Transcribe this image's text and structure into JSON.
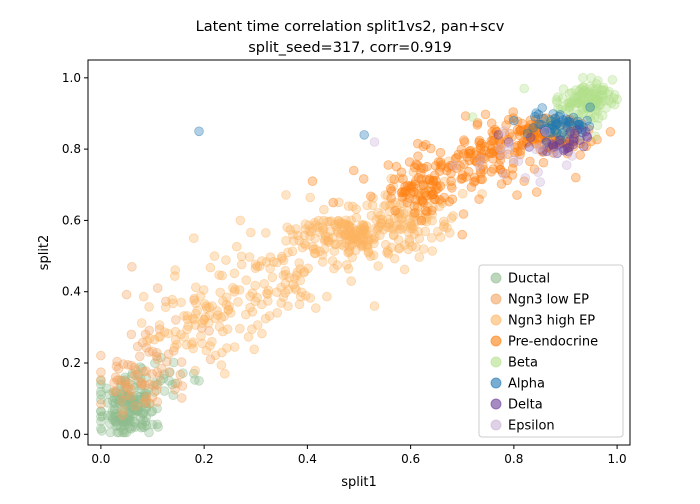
{
  "chart_data": {
    "type": "scatter",
    "title_line1": "Latent time correlation split1vs2, pan+scv",
    "title_line2": "split_seed=317, corr=0.919",
    "xlabel": "split1",
    "ylabel": "split2",
    "xlim": [
      -0.025,
      1.025
    ],
    "ylim": [
      -0.03,
      1.05
    ],
    "xticks": [
      0.0,
      0.2,
      0.4,
      0.6,
      0.8,
      1.0
    ],
    "xtick_labels": [
      "0.0",
      "0.2",
      "0.4",
      "0.6",
      "0.8",
      "1.0"
    ],
    "yticks": [
      0.0,
      0.2,
      0.4,
      0.6,
      0.8,
      1.0
    ],
    "ytick_labels": [
      "0.0",
      "0.2",
      "0.4",
      "0.6",
      "0.8",
      "1.0"
    ],
    "grid": false,
    "legend_position": "lower right",
    "point_alpha": 0.35,
    "series": [
      {
        "name": "Ductal",
        "color": "#8fbc8f",
        "clusters": [
          {
            "cx": 0.05,
            "cy": 0.07,
            "sx": 0.025,
            "sy": 0.04,
            "n": 170
          },
          {
            "cx": 0.13,
            "cy": 0.16,
            "sx": 0.04,
            "sy": 0.025,
            "n": 22
          }
        ],
        "points": [
          [
            0.18,
            0.17
          ],
          [
            0.19,
            0.15
          ],
          [
            0.0,
            0.15
          ],
          [
            0.0,
            0.12
          ]
        ]
      },
      {
        "name": "Ngn3 low EP",
        "color": "#f4a460",
        "clusters": [
          {
            "cx": 0.07,
            "cy": 0.15,
            "sx": 0.04,
            "sy": 0.05,
            "n": 70
          },
          {
            "cx": 0.14,
            "cy": 0.28,
            "sx": 0.05,
            "sy": 0.05,
            "n": 12
          }
        ],
        "points": [
          [
            0.06,
            0.47
          ],
          [
            0.11,
            0.41
          ]
        ]
      },
      {
        "name": "Ngn3 high EP",
        "color": "#fdb462",
        "clusters": [
          {
            "cx": 0.2,
            "cy": 0.32,
            "sx": 0.06,
            "sy": 0.06,
            "n": 95
          },
          {
            "cx": 0.33,
            "cy": 0.43,
            "sx": 0.06,
            "sy": 0.06,
            "n": 75
          },
          {
            "cx": 0.5,
            "cy": 0.56,
            "sx": 0.06,
            "sy": 0.035,
            "n": 220
          },
          {
            "cx": 0.6,
            "cy": 0.63,
            "sx": 0.05,
            "sy": 0.05,
            "n": 70
          }
        ],
        "points": [
          [
            0.18,
            0.55
          ],
          [
            0.22,
            0.5
          ],
          [
            0.27,
            0.6
          ],
          [
            0.24,
            0.17
          ],
          [
            0.53,
            0.36
          ]
        ]
      },
      {
        "name": "Pre-endocrine",
        "color": "#ff7f0e",
        "clusters": [
          {
            "cx": 0.63,
            "cy": 0.7,
            "sx": 0.04,
            "sy": 0.045,
            "n": 95
          },
          {
            "cx": 0.74,
            "cy": 0.77,
            "sx": 0.045,
            "sy": 0.04,
            "n": 90
          },
          {
            "cx": 0.85,
            "cy": 0.84,
            "sx": 0.05,
            "sy": 0.025,
            "n": 130
          }
        ],
        "points": [
          [
            0.41,
            0.71
          ],
          [
            0.49,
            0.74
          ],
          [
            0.45,
            0.65
          ],
          [
            0.7,
            0.56
          ],
          [
            0.82,
            0.71
          ],
          [
            0.92,
            0.72
          ]
        ]
      },
      {
        "name": "Beta",
        "color": "#b2df8a",
        "clusters": [
          {
            "cx": 0.94,
            "cy": 0.94,
            "sx": 0.025,
            "sy": 0.025,
            "n": 110
          },
          {
            "cx": 0.91,
            "cy": 0.87,
            "sx": 0.03,
            "sy": 0.025,
            "n": 15
          }
        ],
        "points": [
          [
            0.82,
            0.97
          ],
          [
            0.72,
            0.89
          ]
        ]
      },
      {
        "name": "Alpha",
        "color": "#1f77b4",
        "clusters": [
          {
            "cx": 0.89,
            "cy": 0.87,
            "sx": 0.03,
            "sy": 0.02,
            "n": 55
          }
        ],
        "points": [
          [
            0.19,
            0.85
          ],
          [
            0.51,
            0.84
          ],
          [
            0.8,
            0.88
          ]
        ]
      },
      {
        "name": "Delta",
        "color": "#6a3d9a",
        "clusters": [
          {
            "cx": 0.9,
            "cy": 0.82,
            "sx": 0.03,
            "sy": 0.02,
            "n": 30
          }
        ],
        "points": [
          [
            0.77,
            0.84
          ],
          [
            0.79,
            0.82
          ]
        ]
      },
      {
        "name": "Epsilon",
        "color": "#cab2d6",
        "clusters": [
          {
            "cx": 0.82,
            "cy": 0.78,
            "sx": 0.05,
            "sy": 0.04,
            "n": 18
          }
        ],
        "points": [
          [
            0.53,
            0.82
          ],
          [
            0.79,
            0.8
          ],
          [
            0.78,
            0.73
          ]
        ]
      }
    ]
  }
}
